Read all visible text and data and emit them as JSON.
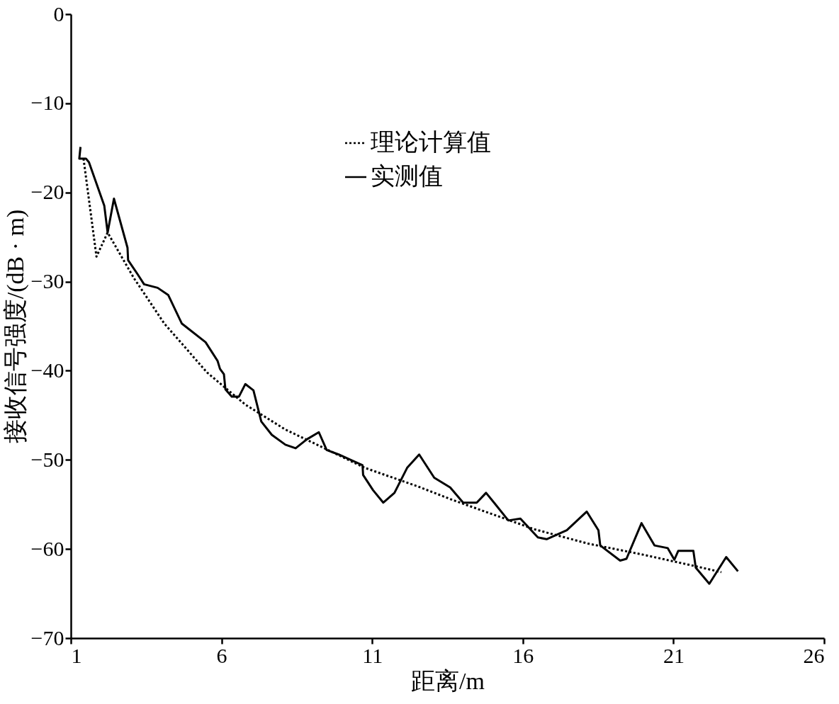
{
  "chart_data": {
    "type": "line",
    "xlabel": "距离/m",
    "ylabel": "接收信号强度/(dB · m)",
    "xlim": [
      1,
      26
    ],
    "xticks": [
      1,
      6,
      11,
      16,
      21,
      26
    ],
    "ylim": [
      -70,
      0
    ],
    "yticks": [
      -70,
      -60,
      -50,
      -40,
      -30,
      -20,
      -10,
      0
    ],
    "grid": false,
    "legend": "top right",
    "marker": "none",
    "series": [
      {
        "name": "理论计算值",
        "color": "#000000",
        "line_style": "dotted",
        "x": [
          1.42,
          1.85,
          2.22,
          3.09,
          4.1,
          5.52,
          6.79,
          8.12,
          9.17,
          10.76,
          12.53,
          13.67,
          16.4,
          18.17,
          19.94,
          21.69,
          22.59
        ],
        "values": [
          -16.2,
          -27.2,
          -24.5,
          -29.6,
          -34.7,
          -40.2,
          -43.8,
          -46.6,
          -48.3,
          -50.9,
          -53.0,
          -54.5,
          -57.8,
          -59.4,
          -60.6,
          -61.9,
          -62.6
        ]
      },
      {
        "name": "实测值",
        "color": "#000000",
        "line_style": "solid",
        "x": [
          1.32,
          1.28,
          1.5,
          1.6,
          2.11,
          2.22,
          2.43,
          2.88,
          2.9,
          3.22,
          3.43,
          3.88,
          4.23,
          4.68,
          5.47,
          5.87,
          5.95,
          6.08,
          6.13,
          6.34,
          6.58,
          6.79,
          7.06,
          7.32,
          7.67,
          8.12,
          8.46,
          8.83,
          9.23,
          9.49,
          9.89,
          10.29,
          10.68,
          10.7,
          11.03,
          11.37,
          11.74,
          12.16,
          12.56,
          13.06,
          13.59,
          14.02,
          14.47,
          14.78,
          15.07,
          15.52,
          15.92,
          16.5,
          16.79,
          17.46,
          18.12,
          18.51,
          18.57,
          19.23,
          19.44,
          19.94,
          20.37,
          20.81,
          21.03,
          21.16,
          21.66,
          21.74,
          22.19,
          22.75,
          23.14
        ],
        "values": [
          -14.9,
          -16.2,
          -16.2,
          -16.6,
          -21.5,
          -24.5,
          -20.7,
          -26.2,
          -27.6,
          -29.2,
          -30.3,
          -30.7,
          -31.5,
          -34.7,
          -36.8,
          -38.9,
          -39.8,
          -40.4,
          -42.1,
          -42.9,
          -42.9,
          -41.5,
          -42.2,
          -45.7,
          -47.2,
          -48.3,
          -48.7,
          -47.7,
          -46.9,
          -48.9,
          -49.4,
          -50.0,
          -50.6,
          -51.7,
          -53.4,
          -54.8,
          -53.7,
          -50.9,
          -49.4,
          -52.0,
          -53.1,
          -54.8,
          -54.8,
          -53.7,
          -54.9,
          -56.8,
          -56.6,
          -58.7,
          -58.9,
          -57.9,
          -55.8,
          -57.9,
          -59.6,
          -61.3,
          -61.1,
          -57.1,
          -59.6,
          -59.9,
          -61.2,
          -60.2,
          -60.2,
          -62.1,
          -63.9,
          -60.9,
          -62.5
        ]
      }
    ]
  }
}
